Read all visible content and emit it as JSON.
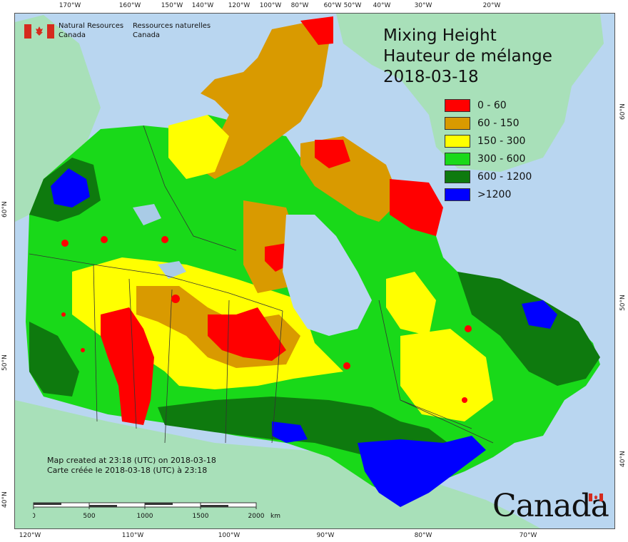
{
  "map": {
    "title_en": "Mixing Height",
    "title_fr": "Hauteur de mélange",
    "date": "2018-03-18",
    "colors": {
      "ocean": "#b9d6f0",
      "foreign_land": "#a8e0b9",
      "lake": "#a9cbe6"
    }
  },
  "agency": {
    "name_en_line1": "Natural Resources",
    "name_en_line2": "Canada",
    "name_fr_line1": "Ressources naturelles",
    "name_fr_line2": "Canada",
    "flag_color": "#d52b1e"
  },
  "legend": [
    {
      "label": "0 - 60",
      "color": "#ff0000"
    },
    {
      "label": "60 - 150",
      "color": "#d99a00"
    },
    {
      "label": "150 - 300",
      "color": "#ffff00"
    },
    {
      "label": "300 - 600",
      "color": "#19d919"
    },
    {
      "label": "600 - 1200",
      "color": "#0e7a0e"
    },
    {
      "label": ">1200",
      "color": "#0000ff"
    }
  ],
  "credits": {
    "line_en": "Map created at 23:18 (UTC) on 2018-03-18",
    "line_fr": "Carte créée le 2018-03-18 (UTC) à 23:18"
  },
  "scale": {
    "labels": [
      "0",
      "500",
      "1000",
      "1500",
      "2000"
    ],
    "unit": "km"
  },
  "wordmark": "Canada",
  "graticule": {
    "top": [
      "170°W",
      "160°W",
      "150°W",
      "140°W",
      "120°W",
      "100°W",
      "80°W",
      "60°W",
      "50°W",
      "40°W",
      "30°W",
      "20°W"
    ],
    "bottom": [
      "120°W",
      "110°W",
      "100°W",
      "90°W",
      "80°W",
      "70°W"
    ],
    "left": [
      "60°N",
      "50°N",
      "40°N"
    ],
    "right": [
      "60°N",
      "50°N",
      "40°N"
    ]
  }
}
